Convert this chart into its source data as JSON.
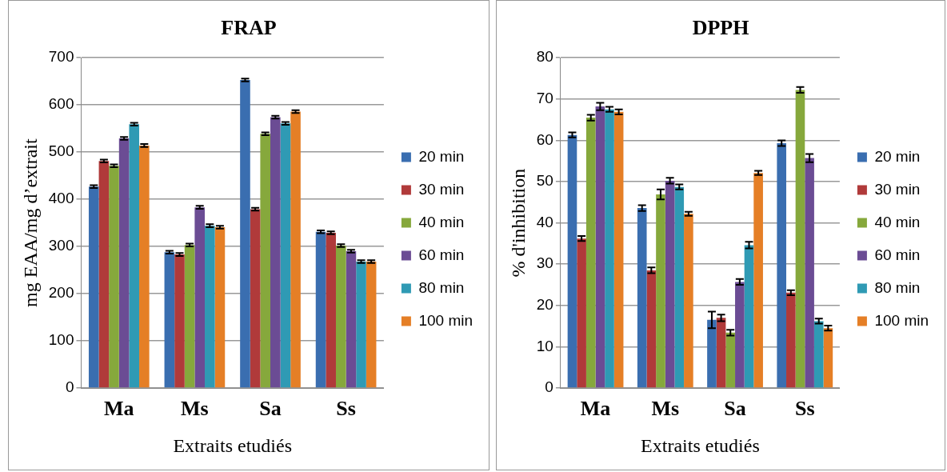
{
  "chart_data": [
    {
      "type": "bar",
      "title": "FRAP",
      "xlabel": "Extraits etudiés",
      "ylabel": "mg EAA/mg d’extrait",
      "categories": [
        "Ma",
        "Ms",
        "Sa",
        "Ss"
      ],
      "ylim": [
        0,
        700
      ],
      "yticks": [
        0,
        100,
        200,
        300,
        400,
        500,
        600,
        700
      ],
      "grid": "y",
      "legend": "right",
      "series": [
        {
          "name": "20 min",
          "color": "#3a6eb0",
          "values": [
            427,
            288,
            653,
            331
          ],
          "errors": [
            3,
            3,
            3,
            3
          ]
        },
        {
          "name": "30 min",
          "color": "#b03a3a",
          "values": [
            481,
            283,
            379,
            329
          ],
          "errors": [
            3,
            3,
            3,
            3
          ]
        },
        {
          "name": "40 min",
          "color": "#86a83c",
          "values": [
            471,
            303,
            539,
            302
          ],
          "errors": [
            3,
            3,
            3,
            3
          ]
        },
        {
          "name": "60 min",
          "color": "#6b4c94",
          "values": [
            529,
            383,
            574,
            290
          ],
          "errors": [
            3,
            3,
            3,
            3
          ]
        },
        {
          "name": "80 min",
          "color": "#2f9ab4",
          "values": [
            559,
            344,
            561,
            268
          ],
          "errors": [
            3,
            3,
            3,
            3
          ]
        },
        {
          "name": "100 min",
          "color": "#e57f26",
          "values": [
            514,
            341,
            586,
            268
          ],
          "errors": [
            3,
            3,
            3,
            3
          ]
        }
      ]
    },
    {
      "type": "bar",
      "title": "DPPH",
      "xlabel": "Extraits etudiés",
      "ylabel": "% d'inhibition",
      "categories": [
        "Ma",
        "Ms",
        "Sa",
        "Ss"
      ],
      "ylim": [
        0,
        80
      ],
      "yticks": [
        0,
        10,
        20,
        30,
        40,
        50,
        60,
        70,
        80
      ],
      "grid": "y",
      "legend": "right",
      "series": [
        {
          "name": "20 min",
          "color": "#3a6eb0",
          "values": [
            61.3,
            43.6,
            16.5,
            59.3
          ],
          "errors": [
            0.6,
            0.7,
            2,
            0.7
          ]
        },
        {
          "name": "30 min",
          "color": "#b03a3a",
          "values": [
            36.2,
            28.5,
            17,
            23.1
          ],
          "errors": [
            0.6,
            0.7,
            0.8,
            0.6
          ]
        },
        {
          "name": "40 min",
          "color": "#86a83c",
          "values": [
            65.5,
            46.9,
            13.4,
            72.2
          ],
          "errors": [
            0.7,
            1.2,
            0.7,
            0.7
          ]
        },
        {
          "name": "60 min",
          "color": "#6b4c94",
          "values": [
            68.2,
            50.2,
            25.7,
            55.7
          ],
          "errors": [
            0.9,
            0.7,
            0.7,
            1
          ]
        },
        {
          "name": "80 min",
          "color": "#2f9ab4",
          "values": [
            67.5,
            48.7,
            34.6,
            16.2
          ],
          "errors": [
            0.6,
            0.6,
            0.8,
            0.6
          ]
        },
        {
          "name": "100 min",
          "color": "#e57f26",
          "values": [
            66.9,
            42.2,
            52.1,
            14.5
          ],
          "errors": [
            0.6,
            0.5,
            0.5,
            0.6
          ]
        }
      ]
    }
  ]
}
